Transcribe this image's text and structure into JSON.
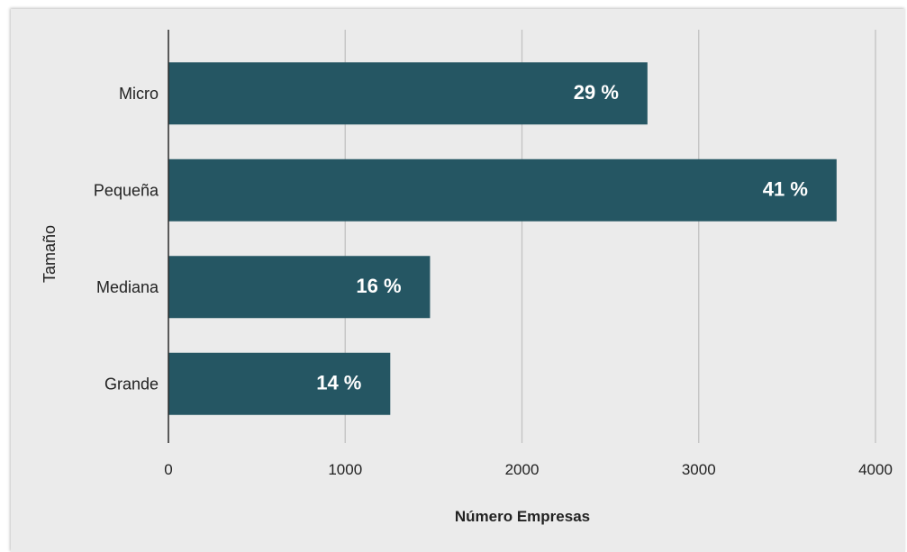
{
  "chart_data": {
    "type": "bar",
    "orientation": "horizontal",
    "categories": [
      "Micro",
      "Pequeña",
      "Mediana",
      "Grande"
    ],
    "values": [
      2710,
      3780,
      1480,
      1255
    ],
    "data_labels": [
      "29 %",
      "41 %",
      "16 %",
      "14 %"
    ],
    "title": "",
    "xlabel": "Número Empresas",
    "ylabel": "Tamaño",
    "xlim": [
      0,
      4000
    ],
    "xticks": [
      0,
      1000,
      2000,
      3000,
      4000
    ],
    "xtick_labels": [
      "0",
      "1000",
      "2000",
      "3000",
      "4000"
    ],
    "grid": true,
    "legend": "none",
    "colors": {
      "bar": "#255663",
      "grid": "#c2c2c2",
      "axis": "#2b2b2b",
      "background": "#ebebeb"
    }
  }
}
